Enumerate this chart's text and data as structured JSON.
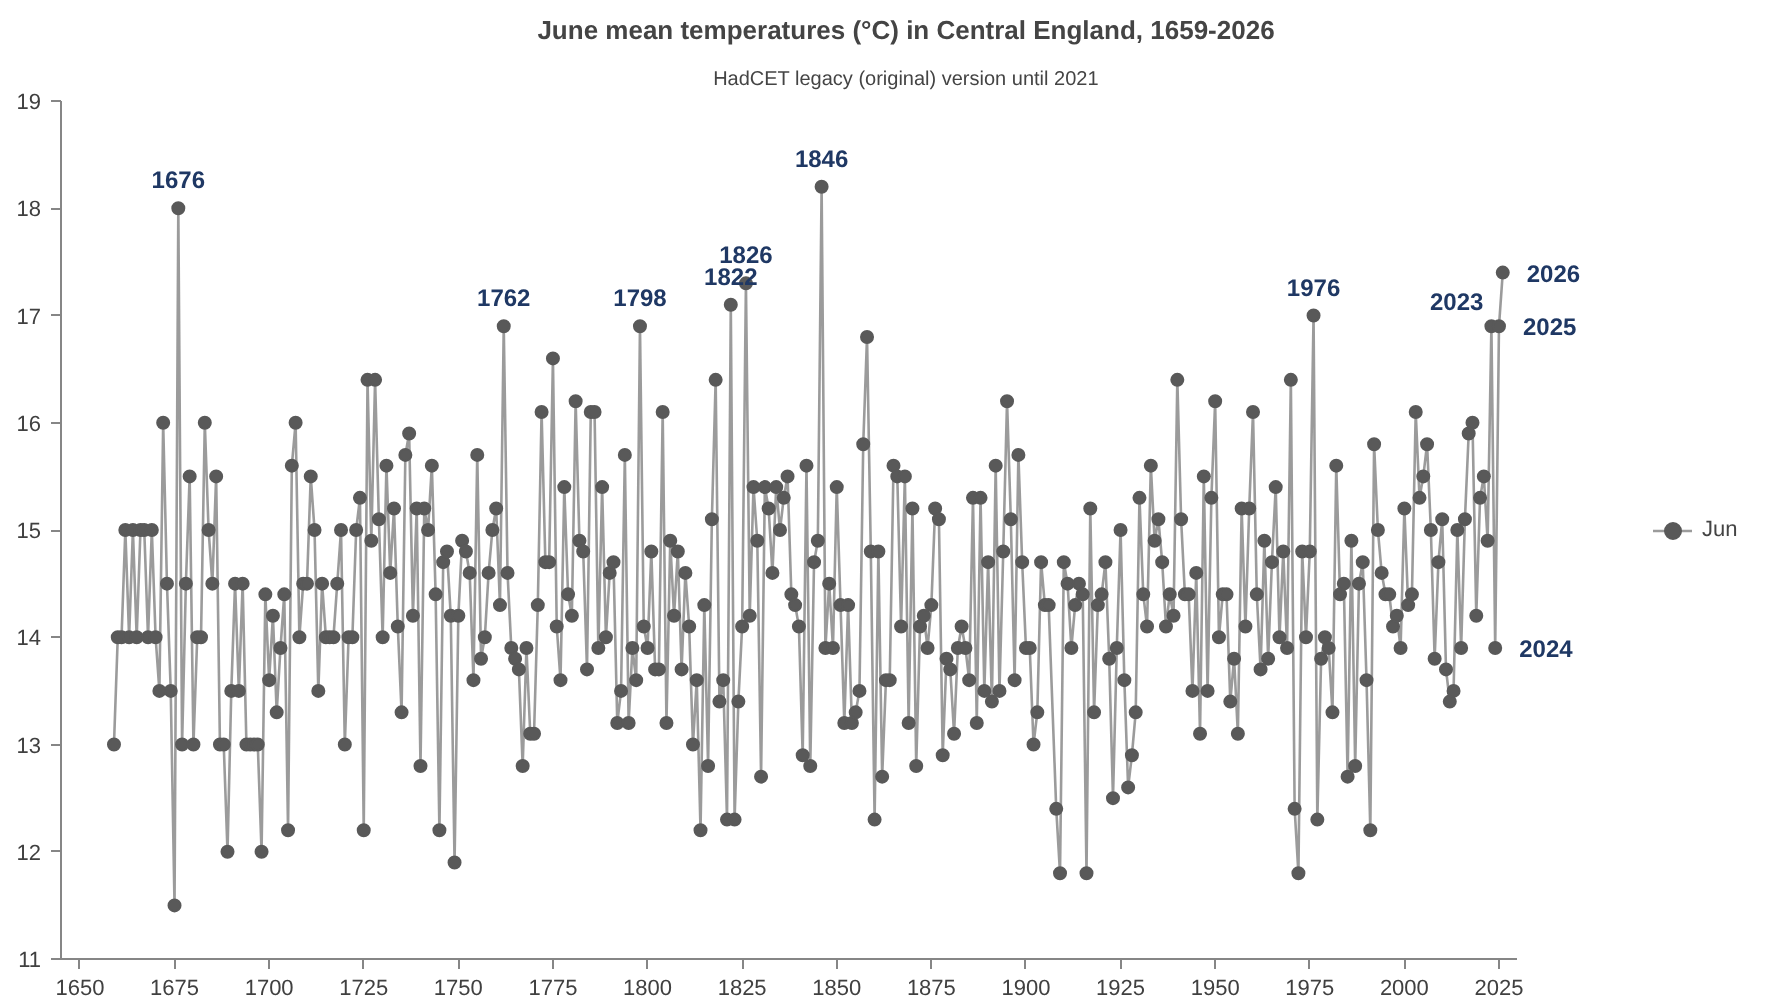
{
  "chart_data": {
    "type": "line",
    "title": "June mean temperatures (°C) in Central England, 1659-2026",
    "subtitle": "HadCET legacy (original) version until 2021",
    "x": [
      1659,
      1660,
      1661,
      1662,
      1663,
      1664,
      1665,
      1666,
      1667,
      1668,
      1669,
      1670,
      1671,
      1672,
      1673,
      1674,
      1675,
      1676,
      1677,
      1678,
      1679,
      1680,
      1681,
      1682,
      1683,
      1684,
      1685,
      1686,
      1687,
      1688,
      1689,
      1690,
      1691,
      1692,
      1693,
      1694,
      1695,
      1696,
      1697,
      1698,
      1699,
      1700,
      1701,
      1702,
      1703,
      1704,
      1705,
      1706,
      1707,
      1708,
      1709,
      1710,
      1711,
      1712,
      1713,
      1714,
      1715,
      1716,
      1717,
      1718,
      1719,
      1720,
      1721,
      1722,
      1723,
      1724,
      1725,
      1726,
      1727,
      1728,
      1729,
      1730,
      1731,
      1732,
      1733,
      1734,
      1735,
      1736,
      1737,
      1738,
      1739,
      1740,
      1741,
      1742,
      1743,
      1744,
      1745,
      1746,
      1747,
      1748,
      1749,
      1750,
      1751,
      1752,
      1753,
      1754,
      1755,
      1756,
      1757,
      1758,
      1759,
      1760,
      1761,
      1762,
      1763,
      1764,
      1765,
      1766,
      1767,
      1768,
      1769,
      1770,
      1771,
      1772,
      1773,
      1774,
      1775,
      1776,
      1777,
      1778,
      1779,
      1780,
      1781,
      1782,
      1783,
      1784,
      1785,
      1786,
      1787,
      1788,
      1789,
      1790,
      1791,
      1792,
      1793,
      1794,
      1795,
      1796,
      1797,
      1798,
      1799,
      1800,
      1801,
      1802,
      1803,
      1804,
      1805,
      1806,
      1807,
      1808,
      1809,
      1810,
      1811,
      1812,
      1813,
      1814,
      1815,
      1816,
      1817,
      1818,
      1819,
      1820,
      1821,
      1822,
      1823,
      1824,
      1825,
      1826,
      1827,
      1828,
      1829,
      1830,
      1831,
      1832,
      1833,
      1834,
      1835,
      1836,
      1837,
      1838,
      1839,
      1840,
      1841,
      1842,
      1843,
      1844,
      1845,
      1846,
      1847,
      1848,
      1849,
      1850,
      1851,
      1852,
      1853,
      1854,
      1855,
      1856,
      1857,
      1858,
      1859,
      1860,
      1861,
      1862,
      1863,
      1864,
      1865,
      1866,
      1867,
      1868,
      1869,
      1870,
      1871,
      1872,
      1873,
      1874,
      1875,
      1876,
      1877,
      1878,
      1879,
      1880,
      1881,
      1882,
      1883,
      1884,
      1885,
      1886,
      1887,
      1888,
      1889,
      1890,
      1891,
      1892,
      1893,
      1894,
      1895,
      1896,
      1897,
      1898,
      1899,
      1900,
      1901,
      1902,
      1903,
      1904,
      1905,
      1906,
      1908,
      1909,
      1910,
      1911,
      1912,
      1913,
      1914,
      1915,
      1916,
      1917,
      1918,
      1919,
      1920,
      1921,
      1922,
      1923,
      1924,
      1925,
      1926,
      1927,
      1928,
      1929,
      1930,
      1931,
      1932,
      1933,
      1934,
      1935,
      1936,
      1937,
      1938,
      1939,
      1940,
      1941,
      1942,
      1943,
      1944,
      1945,
      1946,
      1947,
      1948,
      1949,
      1950,
      1951,
      1952,
      1953,
      1954,
      1955,
      1956,
      1957,
      1958,
      1959,
      1960,
      1961,
      1962,
      1963,
      1964,
      1965,
      1966,
      1967,
      1968,
      1969,
      1970,
      1971,
      1972,
      1973,
      1974,
      1975,
      1976,
      1977,
      1978,
      1979,
      1980,
      1981,
      1982,
      1983,
      1984,
      1985,
      1986,
      1987,
      1988,
      1989,
      1990,
      1991,
      1992,
      1993,
      1994,
      1995,
      1996,
      1997,
      1998,
      1999,
      2000,
      2001,
      2002,
      2003,
      2004,
      2005,
      2006,
      2007,
      2008,
      2009,
      2010,
      2011,
      2012,
      2013,
      2014,
      2015,
      2016,
      2017,
      2018,
      2019,
      2020,
      2021,
      2022,
      2023,
      2024,
      2025,
      2026
    ],
    "series": [
      {
        "name": "Jun",
        "color": "#595959",
        "values": [
          13.0,
          14.0,
          14.0,
          15.0,
          14.0,
          15.0,
          14.0,
          15.0,
          15.0,
          14.0,
          15.0,
          14.0,
          13.5,
          16.0,
          14.5,
          13.5,
          11.5,
          18.0,
          13.0,
          14.5,
          15.5,
          13.0,
          14.0,
          14.0,
          16.0,
          15.0,
          14.5,
          15.5,
          13.0,
          13.0,
          12.0,
          13.5,
          14.5,
          13.5,
          14.5,
          13.0,
          13.0,
          13.0,
          13.0,
          12.0,
          14.4,
          13.6,
          14.2,
          13.3,
          13.9,
          14.4,
          12.2,
          15.6,
          16.0,
          14.0,
          14.5,
          14.5,
          15.5,
          15.0,
          13.5,
          14.5,
          14.0,
          14.0,
          14.0,
          14.5,
          15.0,
          13.0,
          14.0,
          14.0,
          15.0,
          15.3,
          12.2,
          16.4,
          14.9,
          16.4,
          15.1,
          14.0,
          15.6,
          14.6,
          15.2,
          14.1,
          13.3,
          15.7,
          15.9,
          14.2,
          15.2,
          12.8,
          15.2,
          15.0,
          15.6,
          14.4,
          12.2,
          14.7,
          14.8,
          14.2,
          11.9,
          14.2,
          14.9,
          14.8,
          14.6,
          13.6,
          15.7,
          13.8,
          14.0,
          14.6,
          15.0,
          15.2,
          14.3,
          16.9,
          14.6,
          13.9,
          13.8,
          13.7,
          12.8,
          13.9,
          13.1,
          13.1,
          14.3,
          16.1,
          14.7,
          14.7,
          16.6,
          14.1,
          13.6,
          15.4,
          14.4,
          14.2,
          16.2,
          14.9,
          14.8,
          13.7,
          16.1,
          16.1,
          13.9,
          15.4,
          14.0,
          14.6,
          14.7,
          13.2,
          13.5,
          15.7,
          13.2,
          13.9,
          13.6,
          16.9,
          14.1,
          13.9,
          14.8,
          13.7,
          13.7,
          16.1,
          13.2,
          14.9,
          14.2,
          14.8,
          13.7,
          14.6,
          14.1,
          13.0,
          13.6,
          12.2,
          14.3,
          12.8,
          15.1,
          16.4,
          13.4,
          13.6,
          12.3,
          17.1,
          12.3,
          13.4,
          14.1,
          17.3,
          14.2,
          15.4,
          14.9,
          12.7,
          15.4,
          15.2,
          14.6,
          15.4,
          15.0,
          15.3,
          15.5,
          14.4,
          14.3,
          14.1,
          12.9,
          15.6,
          12.8,
          14.7,
          14.9,
          18.2,
          13.9,
          14.5,
          13.9,
          15.4,
          14.3,
          13.2,
          14.3,
          13.2,
          13.3,
          13.5,
          15.8,
          16.8,
          14.8,
          12.3,
          14.8,
          12.7,
          13.6,
          13.6,
          15.6,
          15.5,
          14.1,
          15.5,
          13.2,
          15.2,
          12.8,
          14.1,
          14.2,
          13.9,
          14.3,
          15.2,
          15.1,
          12.9,
          13.8,
          13.7,
          13.1,
          13.9,
          14.1,
          13.9,
          13.6,
          15.3,
          13.2,
          15.3,
          13.5,
          14.7,
          13.4,
          15.6,
          13.5,
          14.8,
          16.2,
          15.1,
          13.6,
          15.7,
          14.7,
          13.9,
          13.9,
          13.0,
          13.3,
          14.7,
          14.3,
          14.3,
          12.4,
          11.8,
          14.7,
          14.5,
          13.9,
          14.3,
          14.5,
          14.4,
          11.8,
          15.2,
          13.3,
          14.3,
          14.4,
          14.7,
          13.8,
          12.5,
          13.9,
          15.0,
          13.6,
          12.6,
          12.9,
          13.3,
          15.3,
          14.4,
          14.1,
          15.6,
          14.9,
          15.1,
          14.7,
          14.1,
          14.4,
          14.2,
          16.4,
          15.1,
          14.4,
          14.4,
          13.5,
          14.6,
          13.1,
          15.5,
          13.5,
          15.3,
          16.2,
          14.0,
          14.4,
          14.4,
          13.4,
          13.8,
          13.1,
          15.2,
          14.1,
          15.2,
          16.1,
          14.4,
          13.7,
          14.9,
          13.8,
          14.7,
          15.4,
          14.0,
          14.8,
          13.9,
          16.4,
          12.4,
          11.8,
          14.8,
          14.0,
          14.8,
          17.0,
          12.3,
          13.8,
          14.0,
          13.9,
          13.3,
          15.6,
          14.4,
          14.5,
          12.7,
          14.9,
          12.8,
          14.5,
          14.7,
          13.6,
          12.2,
          15.8,
          15.0,
          14.6,
          14.4,
          14.4,
          14.1,
          14.2,
          13.9,
          15.2,
          14.3,
          14.4,
          16.1,
          15.3,
          15.5,
          15.8,
          15.0,
          13.8,
          14.7,
          15.1,
          13.7,
          13.4,
          13.5,
          15.0,
          13.9,
          15.1,
          15.9,
          16.0,
          14.2,
          15.3,
          15.5,
          14.9,
          16.9,
          13.9,
          16.9,
          17.4
        ]
      }
    ],
    "xlim": [
      1645,
      2030
    ],
    "xticks": [
      1650,
      1675,
      1700,
      1725,
      1750,
      1775,
      1800,
      1825,
      1850,
      1875,
      1900,
      1925,
      1950,
      1975,
      2000,
      2025
    ],
    "ylim": [
      11,
      19
    ],
    "yticks": [
      11,
      12,
      13,
      14,
      15,
      16,
      17,
      18,
      19
    ],
    "marker": "circle",
    "legend": "right",
    "annotations": [
      {
        "text": "1676",
        "x": 1676,
        "y": 18.0
      },
      {
        "text": "1762",
        "x": 1762,
        "y": 16.9
      },
      {
        "text": "1798",
        "x": 1798,
        "y": 16.9
      },
      {
        "text": "1822",
        "x": 1822,
        "y": 17.1
      },
      {
        "text": "1826",
        "x": 1826,
        "y": 17.3
      },
      {
        "text": "1846",
        "x": 1846,
        "y": 18.2
      },
      {
        "text": "1976",
        "x": 1976,
        "y": 17.0
      },
      {
        "text": "2023",
        "x": 2023,
        "y": 16.9
      },
      {
        "text": "2024",
        "x": 2024,
        "y": 13.9
      },
      {
        "text": "2025",
        "x": 2025,
        "y": 16.9
      },
      {
        "text": "2026",
        "x": 2026,
        "y": 17.4
      }
    ]
  }
}
